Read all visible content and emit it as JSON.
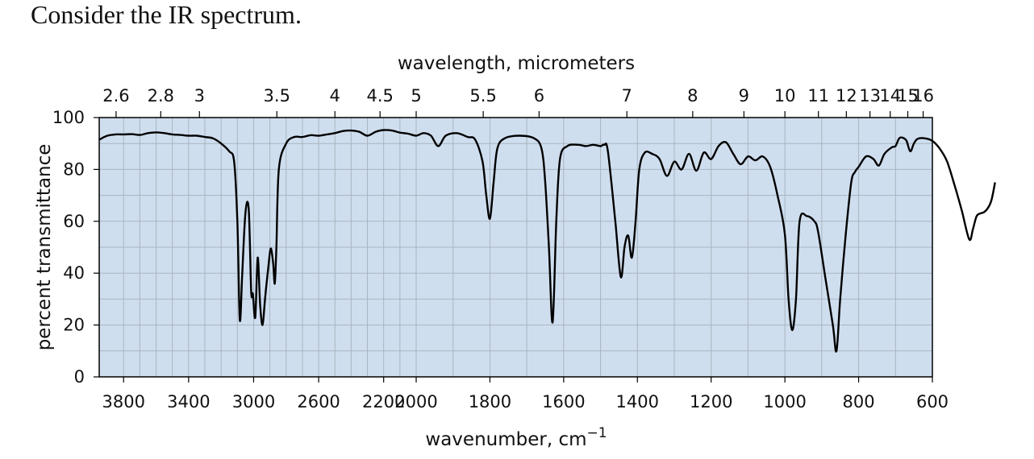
{
  "question": "Consider the IR spectrum.",
  "colors": {
    "plot_background": "#cfdeef",
    "grid": "#a9b4bf",
    "line": "#000000"
  },
  "chart_data": {
    "type": "line",
    "title": "",
    "xlabel": "wavenumber, cm",
    "xlabel_superscript": "−1",
    "ylabel": "percent transmittance",
    "top_xlabel": "wavelength, micrometers",
    "xlim": [
      3950,
      600
    ],
    "ylim": [
      0,
      100
    ],
    "x_axis_note": "two linear segments: 3950–2000 cm-1 and 2000–600 cm-1 (doubled scale)",
    "x_tick_labels": [
      "3800",
      "3400",
      "3000",
      "2600",
      "2200",
      "2000",
      "1800",
      "1600",
      "1400",
      "1200",
      "1000",
      "800",
      "600"
    ],
    "x_ticks": [
      3800,
      3400,
      3000,
      2600,
      2200,
      2000,
      1800,
      1600,
      1400,
      1200,
      1000,
      800,
      600
    ],
    "y_tick_labels": [
      "0",
      "20",
      "40",
      "60",
      "80",
      "100"
    ],
    "y_ticks": [
      0,
      20,
      40,
      60,
      80,
      100
    ],
    "top_tick_labels": [
      "2.6",
      "2.8",
      "3",
      "3.5",
      "4",
      "4.5",
      "5",
      "5.5",
      "6",
      "7",
      "8",
      "9",
      "10",
      "11",
      "12",
      "13",
      "14",
      "15",
      "16"
    ],
    "top_ticks_um": [
      2.6,
      2.8,
      3,
      3.5,
      4,
      4.5,
      5,
      5.5,
      6,
      7,
      8,
      9,
      10,
      11,
      12,
      13,
      14,
      15,
      16
    ],
    "grid": true,
    "series": [
      {
        "points": [
          [
            3950,
            91.5
          ],
          [
            3900,
            93
          ],
          [
            3850,
            93.5
          ],
          [
            3800,
            93.5
          ],
          [
            3750,
            93.6
          ],
          [
            3700,
            93.3
          ],
          [
            3650,
            94
          ],
          [
            3600,
            94.3
          ],
          [
            3550,
            94
          ],
          [
            3500,
            93.5
          ],
          [
            3450,
            93.3
          ],
          [
            3400,
            93
          ],
          [
            3350,
            93
          ],
          [
            3300,
            92.5
          ],
          [
            3250,
            92
          ],
          [
            3200,
            90
          ],
          [
            3150,
            87
          ],
          [
            3120,
            83
          ],
          [
            3100,
            60
          ],
          [
            3085,
            22
          ],
          [
            3070,
            40
          ],
          [
            3050,
            63.5
          ],
          [
            3030,
            64.5
          ],
          [
            3015,
            33
          ],
          [
            3005,
            32
          ],
          [
            2990,
            23
          ],
          [
            2975,
            46
          ],
          [
            2960,
            28
          ],
          [
            2945,
            20
          ],
          [
            2930,
            30
          ],
          [
            2910,
            42
          ],
          [
            2895,
            49.5
          ],
          [
            2880,
            44
          ],
          [
            2870,
            36
          ],
          [
            2860,
            50
          ],
          [
            2845,
            80
          ],
          [
            2800,
            90
          ],
          [
            2750,
            92.5
          ],
          [
            2700,
            92.5
          ],
          [
            2650,
            93.2
          ],
          [
            2600,
            93
          ],
          [
            2550,
            93.5
          ],
          [
            2500,
            94
          ],
          [
            2450,
            94.8
          ],
          [
            2400,
            95
          ],
          [
            2350,
            94.5
          ],
          [
            2300,
            93
          ],
          [
            2250,
            94.5
          ],
          [
            2200,
            95.2
          ],
          [
            2150,
            95
          ],
          [
            2100,
            94.2
          ],
          [
            2050,
            93.8
          ],
          [
            2000,
            93
          ],
          [
            1980,
            94
          ],
          [
            1960,
            93
          ],
          [
            1940,
            89
          ],
          [
            1920,
            93
          ],
          [
            1890,
            94
          ],
          [
            1860,
            92.5
          ],
          [
            1840,
            91.5
          ],
          [
            1820,
            83
          ],
          [
            1810,
            70
          ],
          [
            1800,
            61
          ],
          [
            1790,
            75
          ],
          [
            1780,
            88
          ],
          [
            1760,
            92
          ],
          [
            1720,
            93
          ],
          [
            1680,
            92
          ],
          [
            1660,
            88
          ],
          [
            1650,
            75
          ],
          [
            1640,
            50
          ],
          [
            1630,
            21
          ],
          [
            1620,
            60
          ],
          [
            1610,
            84
          ],
          [
            1590,
            89
          ],
          [
            1560,
            89.5
          ],
          [
            1540,
            89
          ],
          [
            1520,
            89.5
          ],
          [
            1500,
            89
          ],
          [
            1490,
            89.5
          ],
          [
            1480,
            87
          ],
          [
            1460,
            60
          ],
          [
            1445,
            38.5
          ],
          [
            1435,
            50
          ],
          [
            1425,
            54.5
          ],
          [
            1415,
            46
          ],
          [
            1405,
            60
          ],
          [
            1395,
            80
          ],
          [
            1380,
            86.5
          ],
          [
            1360,
            86
          ],
          [
            1340,
            84
          ],
          [
            1320,
            77.5
          ],
          [
            1300,
            83
          ],
          [
            1280,
            80
          ],
          [
            1260,
            86
          ],
          [
            1240,
            79.5
          ],
          [
            1220,
            86.5
          ],
          [
            1200,
            84
          ],
          [
            1180,
            89
          ],
          [
            1160,
            90.5
          ],
          [
            1140,
            86
          ],
          [
            1120,
            82
          ],
          [
            1100,
            85
          ],
          [
            1080,
            83.5
          ],
          [
            1060,
            85
          ],
          [
            1040,
            81
          ],
          [
            1020,
            70
          ],
          [
            1000,
            55
          ],
          [
            990,
            30
          ],
          [
            980,
            18
          ],
          [
            970,
            30
          ],
          [
            960,
            60
          ],
          [
            940,
            62
          ],
          [
            920,
            60
          ],
          [
            910,
            56
          ],
          [
            890,
            38
          ],
          [
            870,
            20
          ],
          [
            860,
            10
          ],
          [
            850,
            30
          ],
          [
            835,
            55
          ],
          [
            820,
            75
          ],
          [
            810,
            79
          ],
          [
            800,
            81
          ],
          [
            780,
            85
          ],
          [
            760,
            84
          ],
          [
            745,
            81.5
          ],
          [
            730,
            86
          ],
          [
            710,
            88.5
          ],
          [
            700,
            89
          ],
          [
            690,
            92
          ],
          [
            680,
            92.2
          ],
          [
            670,
            91
          ],
          [
            660,
            87
          ],
          [
            650,
            90
          ],
          [
            640,
            91.8
          ],
          [
            620,
            92
          ],
          [
            600,
            91
          ],
          [
            580,
            88
          ],
          [
            560,
            83
          ],
          [
            540,
            74
          ],
          [
            520,
            64
          ],
          [
            500,
            53
          ],
          [
            490,
            57
          ],
          [
            480,
            62
          ],
          [
            470,
            63
          ],
          [
            460,
            63.5
          ],
          [
            450,
            65
          ],
          [
            440,
            68
          ],
          [
            430,
            75
          ]
        ]
      }
    ]
  }
}
